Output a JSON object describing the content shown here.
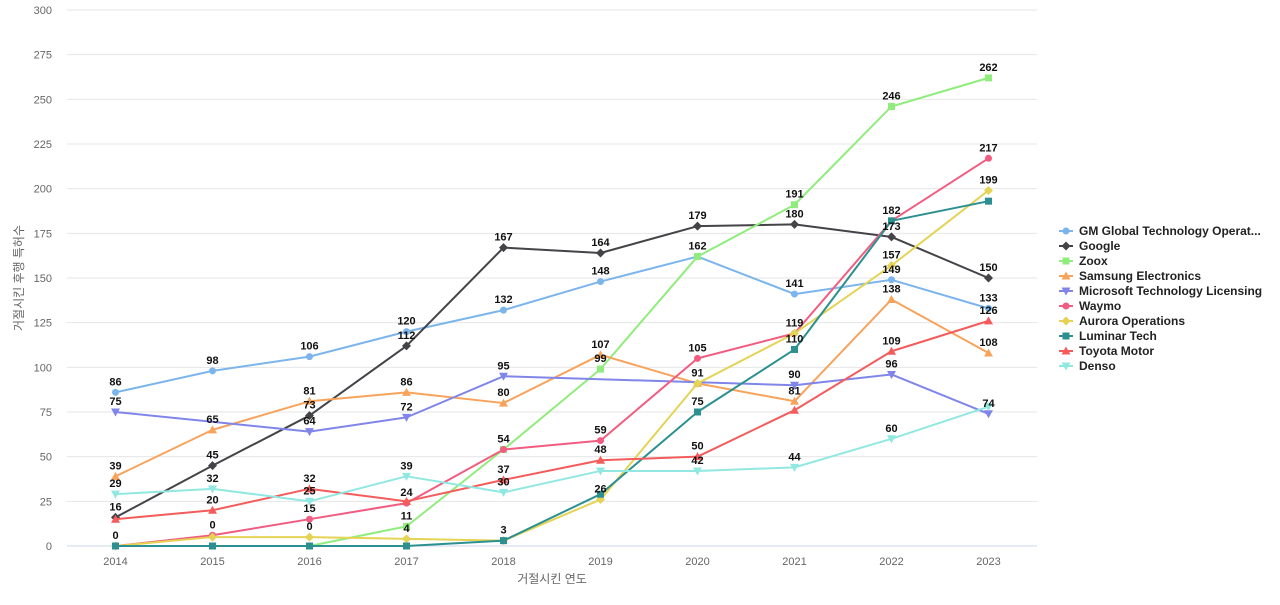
{
  "chart_data": {
    "type": "line",
    "title": "",
    "xlabel": "거절시킨 연도",
    "ylabel": "거절시킨 후행 특허수",
    "ylim": [
      0,
      300
    ],
    "yticks": [
      0,
      25,
      50,
      75,
      100,
      125,
      150,
      175,
      200,
      225,
      250,
      275,
      300
    ],
    "grid": true,
    "legend_position": "right",
    "categories": [
      "2014",
      "2015",
      "2016",
      "2017",
      "2018",
      "2019",
      "2020",
      "2021",
      "2022",
      "2023"
    ],
    "series": [
      {
        "name": "GM Global Technology Operat...",
        "color": "#7cb5ec",
        "marker": "circle",
        "values": [
          86,
          98,
          106,
          120,
          132,
          148,
          162,
          141,
          149,
          133
        ]
      },
      {
        "name": "Google",
        "color": "#434348",
        "marker": "diamond",
        "values": [
          16,
          45,
          73,
          112,
          167,
          164,
          179,
          180,
          173,
          150
        ]
      },
      {
        "name": "Zoox",
        "color": "#90ed7d",
        "marker": "square",
        "values": [
          null,
          null,
          0,
          11,
          54,
          99,
          162,
          191,
          246,
          262
        ]
      },
      {
        "name": "Samsung Electronics",
        "color": "#f7a35c",
        "marker": "triangle",
        "values": [
          39,
          65,
          81,
          86,
          80,
          107,
          91,
          81,
          138,
          108
        ]
      },
      {
        "name": "Microsoft Technology Licensing",
        "color": "#8085e9",
        "marker": "triangle-down",
        "values": [
          75,
          null,
          64,
          72,
          95,
          null,
          null,
          90,
          96,
          74
        ]
      },
      {
        "name": "Waymo",
        "color": "#f15c80",
        "marker": "circle",
        "values": [
          0,
          6,
          15,
          24,
          54,
          59,
          105,
          119,
          182,
          217
        ]
      },
      {
        "name": "Aurora Operations",
        "color": "#e4d354",
        "marker": "diamond",
        "values": [
          0,
          5,
          5,
          4,
          3,
          26,
          91,
          119,
          157,
          199
        ]
      },
      {
        "name": "Luminar Tech",
        "color": "#2b908f",
        "marker": "square",
        "values": [
          0,
          0,
          0,
          0,
          3,
          29,
          75,
          110,
          182,
          193
        ]
      },
      {
        "name": "Toyota Motor",
        "color": "#f45b5b",
        "marker": "triangle",
        "values": [
          15,
          20,
          32,
          25,
          37,
          48,
          50,
          76,
          109,
          126
        ]
      },
      {
        "name": "Denso",
        "color": "#91e8e1",
        "marker": "triangle-down",
        "values": [
          29,
          32,
          25,
          39,
          30,
          42,
          42,
          44,
          60,
          78
        ]
      }
    ],
    "data_labels": [
      {
        "category": "2014",
        "y": 86,
        "text": "86"
      },
      {
        "category": "2014",
        "y": 75,
        "text": "75"
      },
      {
        "category": "2014",
        "y": 39,
        "text": "39"
      },
      {
        "category": "2014",
        "y": 29,
        "text": "29"
      },
      {
        "category": "2014",
        "y": 16,
        "text": "16"
      },
      {
        "category": "2014",
        "y": 0,
        "text": "0"
      },
      {
        "category": "2015",
        "y": 98,
        "text": "98"
      },
      {
        "category": "2015",
        "y": 65,
        "text": "65"
      },
      {
        "category": "2015",
        "y": 45,
        "text": "45"
      },
      {
        "category": "2015",
        "y": 32,
        "text": "32"
      },
      {
        "category": "2015",
        "y": 20,
        "text": "20"
      },
      {
        "category": "2015",
        "y": 6,
        "text": "0"
      },
      {
        "category": "2016",
        "y": 106,
        "text": "106"
      },
      {
        "category": "2016",
        "y": 81,
        "text": "81"
      },
      {
        "category": "2016",
        "y": 73,
        "text": "73"
      },
      {
        "category": "2016",
        "y": 64,
        "text": "64"
      },
      {
        "category": "2016",
        "y": 32,
        "text": "32"
      },
      {
        "category": "2016",
        "y": 25,
        "text": "25"
      },
      {
        "category": "2016",
        "y": 15,
        "text": "15"
      },
      {
        "category": "2016",
        "y": 5,
        "text": "0"
      },
      {
        "category": "2017",
        "y": 120,
        "text": "120"
      },
      {
        "category": "2017",
        "y": 112,
        "text": "112"
      },
      {
        "category": "2017",
        "y": 86,
        "text": "86"
      },
      {
        "category": "2017",
        "y": 72,
        "text": "72"
      },
      {
        "category": "2017",
        "y": 39,
        "text": "39"
      },
      {
        "category": "2017",
        "y": 24,
        "text": "24"
      },
      {
        "category": "2017",
        "y": 11,
        "text": "11"
      },
      {
        "category": "2017",
        "y": 4,
        "text": "4"
      },
      {
        "category": "2018",
        "y": 167,
        "text": "167"
      },
      {
        "category": "2018",
        "y": 132,
        "text": "132"
      },
      {
        "category": "2018",
        "y": 95,
        "text": "95"
      },
      {
        "category": "2018",
        "y": 80,
        "text": "80"
      },
      {
        "category": "2018",
        "y": 54,
        "text": "54"
      },
      {
        "category": "2018",
        "y": 37,
        "text": "37"
      },
      {
        "category": "2018",
        "y": 30,
        "text": "30"
      },
      {
        "category": "2018",
        "y": 3,
        "text": "3"
      },
      {
        "category": "2019",
        "y": 164,
        "text": "164"
      },
      {
        "category": "2019",
        "y": 148,
        "text": "148"
      },
      {
        "category": "2019",
        "y": 107,
        "text": "107"
      },
      {
        "category": "2019",
        "y": 99,
        "text": "99"
      },
      {
        "category": "2019",
        "y": 59,
        "text": "59"
      },
      {
        "category": "2019",
        "y": 48,
        "text": "48"
      },
      {
        "category": "2019",
        "y": 26,
        "text": "26"
      },
      {
        "category": "2020",
        "y": 179,
        "text": "179"
      },
      {
        "category": "2020",
        "y": 162,
        "text": "162"
      },
      {
        "category": "2020",
        "y": 105,
        "text": "105"
      },
      {
        "category": "2020",
        "y": 91,
        "text": "91"
      },
      {
        "category": "2020",
        "y": 75,
        "text": "75"
      },
      {
        "category": "2020",
        "y": 50,
        "text": "50"
      },
      {
        "category": "2020",
        "y": 42,
        "text": "42"
      },
      {
        "category": "2021",
        "y": 191,
        "text": "191"
      },
      {
        "category": "2021",
        "y": 180,
        "text": "180"
      },
      {
        "category": "2021",
        "y": 141,
        "text": "141"
      },
      {
        "category": "2021",
        "y": 119,
        "text": "119"
      },
      {
        "category": "2021",
        "y": 110,
        "text": "110"
      },
      {
        "category": "2021",
        "y": 90,
        "text": "90"
      },
      {
        "category": "2021",
        "y": 81,
        "text": "81"
      },
      {
        "category": "2021",
        "y": 44,
        "text": "44"
      },
      {
        "category": "2022",
        "y": 246,
        "text": "246"
      },
      {
        "category": "2022",
        "y": 182,
        "text": "182"
      },
      {
        "category": "2022",
        "y": 173,
        "text": "173"
      },
      {
        "category": "2022",
        "y": 157,
        "text": "157"
      },
      {
        "category": "2022",
        "y": 149,
        "text": "149"
      },
      {
        "category": "2022",
        "y": 138,
        "text": "138"
      },
      {
        "category": "2022",
        "y": 109,
        "text": "109"
      },
      {
        "category": "2022",
        "y": 96,
        "text": "96"
      },
      {
        "category": "2022",
        "y": 60,
        "text": "60"
      },
      {
        "category": "2023",
        "y": 262,
        "text": "262"
      },
      {
        "category": "2023",
        "y": 217,
        "text": "217"
      },
      {
        "category": "2023",
        "y": 199,
        "text": "199"
      },
      {
        "category": "2023",
        "y": 150,
        "text": "150"
      },
      {
        "category": "2023",
        "y": 133,
        "text": "133"
      },
      {
        "category": "2023",
        "y": 126,
        "text": "126"
      },
      {
        "category": "2023",
        "y": 108,
        "text": "108"
      },
      {
        "category": "2023",
        "y": 74,
        "text": "74"
      }
    ]
  }
}
